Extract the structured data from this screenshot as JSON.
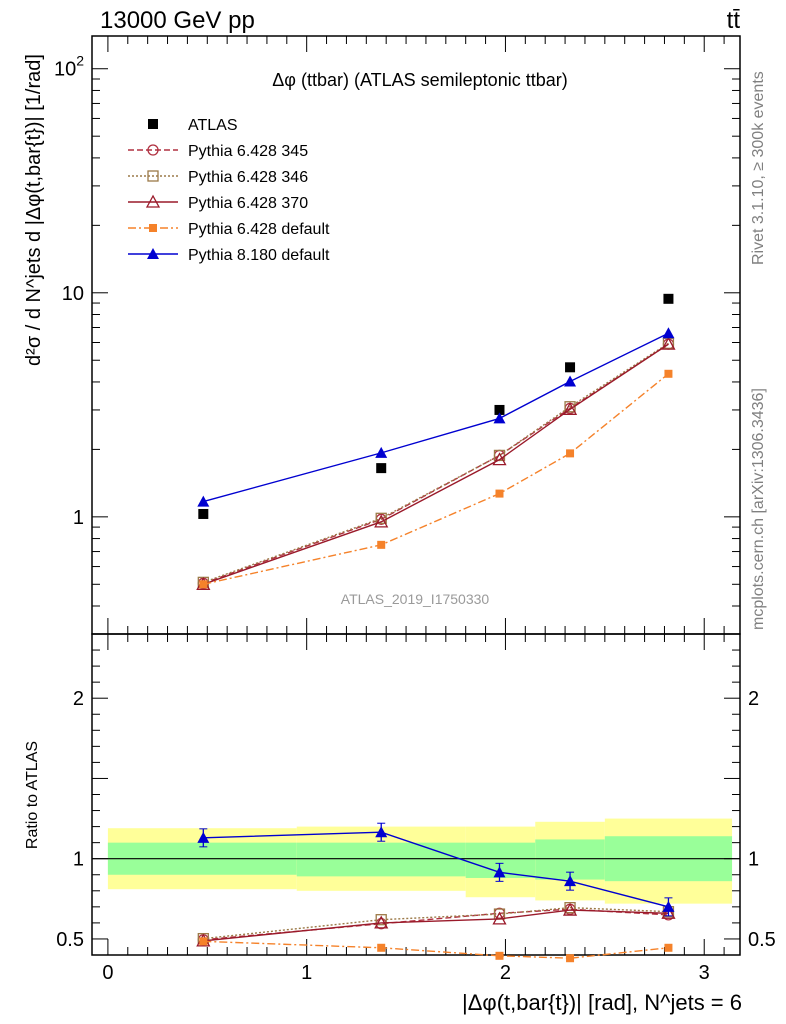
{
  "header": {
    "left": "13000 GeV pp",
    "right": "tt̄"
  },
  "side_text": {
    "rivet": "Rivet 3.1.10, ≥ 300k events",
    "mcplots": "mcplots.cern.ch [arXiv:1306.3436]"
  },
  "watermark": "ATLAS_2019_I1750330",
  "chart_data": [
    {
      "type": "scatter",
      "panel": "main",
      "title": "Δφ (ttbar) (ATLAS semileptonic ttbar)",
      "ylabel": "d²σ / d N^jets d |Δφ(t,bar{t})| [1/rad]",
      "yscale": "log",
      "ylim": [
        0.3,
        140
      ],
      "xlim": [
        -0.08,
        3.18
      ],
      "yticks": [
        {
          "value": 1,
          "label": "1"
        },
        {
          "value": 10,
          "label": "10"
        },
        {
          "value": 100,
          "label": "10²"
        }
      ],
      "legend_position": "top-left",
      "x": [
        0.48,
        1.375,
        1.97,
        2.325,
        2.82
      ],
      "series": [
        {
          "name": "ATLAS",
          "style": "data",
          "color": "#000000",
          "values": [
            1.03,
            1.65,
            3.0,
            4.65,
            9.4
          ]
        },
        {
          "name": "Pythia 6.428 345",
          "style": "circle-dashed",
          "color": "#b03040",
          "values": [
            0.505,
            0.975,
            1.88,
            3.05,
            5.9
          ]
        },
        {
          "name": "Pythia 6.428 346",
          "style": "square-dotted",
          "color": "#9c7a48",
          "values": [
            0.51,
            0.985,
            1.88,
            3.1,
            5.95
          ]
        },
        {
          "name": "Pythia 6.428 370",
          "style": "triangle-solid",
          "color": "#9a1a2a",
          "values": [
            0.5,
            0.95,
            1.8,
            3.02,
            5.9
          ]
        },
        {
          "name": "Pythia 6.428 default",
          "style": "square-dashdot",
          "color": "#f5822a",
          "values": [
            0.5,
            0.75,
            1.27,
            1.92,
            4.35
          ]
        },
        {
          "name": "Pythia 8.180 default",
          "style": "triangle-blue",
          "color": "#0000d0",
          "values": [
            1.17,
            1.93,
            2.75,
            4.02,
            6.6
          ]
        }
      ]
    },
    {
      "type": "line",
      "panel": "ratio",
      "ylabel": "Ratio to ATLAS",
      "xlabel": "|Δφ(t,bar{t})| [rad], N^jets = 6",
      "ylim": [
        0.4,
        2.4
      ],
      "xlim": [
        -0.08,
        3.18
      ],
      "yticks": [
        {
          "value": 0.5,
          "label": "0.5"
        },
        {
          "value": 1,
          "label": "1"
        },
        {
          "value": 2,
          "label": "2"
        }
      ],
      "xticks": [
        {
          "value": 0,
          "label": "0"
        },
        {
          "value": 1,
          "label": "1"
        },
        {
          "value": 2,
          "label": "2"
        },
        {
          "value": 3,
          "label": "3"
        }
      ],
      "bands": {
        "edges": [
          0,
          0.95,
          1.8,
          2.15,
          2.5,
          3.14
        ],
        "yellow": [
          [
            0.81,
            1.19
          ],
          [
            0.8,
            1.2
          ],
          [
            0.76,
            1.2
          ],
          [
            0.74,
            1.23
          ],
          [
            0.72,
            1.25
          ]
        ],
        "green": [
          [
            0.9,
            1.1
          ],
          [
            0.89,
            1.1
          ],
          [
            0.88,
            1.1
          ],
          [
            0.87,
            1.12
          ],
          [
            0.86,
            1.14
          ]
        ]
      },
      "x": [
        0.48,
        1.375,
        1.97,
        2.325,
        2.82
      ],
      "series": [
        {
          "name": "Pythia 6.428 345",
          "color": "#b03040",
          "values": [
            0.495,
            0.595,
            0.66,
            0.685,
            0.65
          ]
        },
        {
          "name": "Pythia 6.428 346",
          "color": "#9c7a48",
          "values": [
            0.502,
            0.62,
            0.655,
            0.695,
            0.67
          ]
        },
        {
          "name": "Pythia 6.428 370",
          "color": "#9a1a2a",
          "values": [
            0.488,
            0.6,
            0.625,
            0.68,
            0.66
          ]
        },
        {
          "name": "Pythia 6.428 default",
          "color": "#f5822a",
          "values": [
            0.485,
            0.445,
            0.395,
            0.38,
            0.445
          ]
        },
        {
          "name": "Pythia 8.180 default",
          "color": "#0000d0",
          "values": [
            1.13,
            1.165,
            0.915,
            0.86,
            0.7
          ]
        }
      ]
    }
  ]
}
